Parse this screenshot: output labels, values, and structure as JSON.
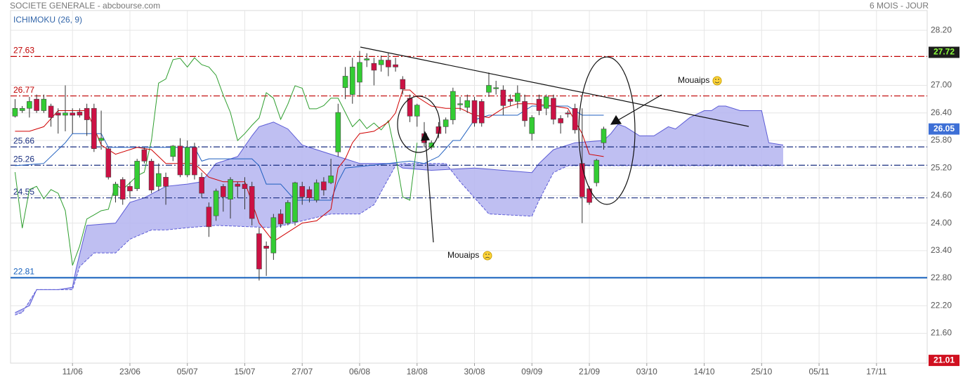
{
  "chart_data": {
    "type": "candlestick",
    "title": "SOCIETE GENERALE - abcbourse.com",
    "period": "6 MOIS - JOUR",
    "indicator": "ICHIMOKU (26, 9)",
    "xlim": [
      -0.63,
      127.06
    ],
    "ylim": [
      20.95,
      28.63
    ],
    "grid": true,
    "xticks": [
      {
        "value": 8,
        "label": "11/06"
      },
      {
        "value": 16,
        "label": "23/06"
      },
      {
        "value": 24,
        "label": "05/07"
      },
      {
        "value": 32,
        "label": "15/07"
      },
      {
        "value": 40,
        "label": "27/07"
      },
      {
        "value": 48,
        "label": "06/08"
      },
      {
        "value": 56,
        "label": "18/08"
      },
      {
        "value": 64,
        "label": "30/08"
      },
      {
        "value": 72,
        "label": "09/09"
      },
      {
        "value": 80,
        "label": "21/09"
      },
      {
        "value": 88,
        "label": "03/10"
      },
      {
        "value": 96,
        "label": "14/10"
      },
      {
        "value": 104,
        "label": "25/10"
      },
      {
        "value": 112,
        "label": "05/11"
      },
      {
        "value": 120,
        "label": "17/11"
      }
    ],
    "yticks": [
      {
        "value": 21.6,
        "label": "21.60"
      },
      {
        "value": 22.2,
        "label": "22.20"
      },
      {
        "value": 22.8,
        "label": "22.80"
      },
      {
        "value": 23.4,
        "label": "23.40"
      },
      {
        "value": 24.0,
        "label": "24.00"
      },
      {
        "value": 24.6,
        "label": "24.60"
      },
      {
        "value": 25.2,
        "label": "25.20"
      },
      {
        "value": 25.8,
        "label": "25.80"
      },
      {
        "value": 26.4,
        "label": "26.40"
      },
      {
        "value": 27.0,
        "label": "27.00"
      },
      {
        "value": 28.2,
        "label": "28.20"
      }
    ],
    "candles": {
      "up_color": "#33cc33",
      "down_color": "#cc1144",
      "x": [
        0,
        1,
        2,
        3,
        4,
        5,
        6,
        7,
        8,
        9,
        10,
        11,
        12,
        13,
        14,
        15,
        16,
        17,
        18,
        19,
        20,
        21,
        22,
        23,
        24,
        25,
        26,
        27,
        28,
        29,
        30,
        31,
        32,
        33,
        34,
        35,
        36,
        37,
        38,
        39,
        40,
        41,
        42,
        43,
        44,
        45,
        46,
        47,
        48,
        49,
        50,
        51,
        52,
        53,
        54,
        55,
        56,
        57,
        58,
        59,
        60,
        61,
        62,
        63,
        64,
        65,
        66,
        67,
        68,
        69,
        70,
        71,
        72,
        73,
        74,
        75,
        76,
        77,
        78,
        79,
        80,
        81,
        82
      ],
      "open": [
        26.33,
        26.45,
        26.5,
        26.7,
        26.45,
        26.55,
        26.4,
        26.35,
        26.4,
        26.42,
        26.5,
        26.5,
        25.8,
        25.62,
        24.6,
        24.95,
        24.8,
        24.75,
        25.6,
        25.35,
        24.8,
        25.0,
        25.45,
        25.68,
        25.05,
        25.65,
        25.0,
        24.35,
        24.16,
        24.8,
        24.52,
        24.85,
        24.85,
        24.8,
        23.77,
        23.5,
        23.35,
        24.2,
        24.0,
        24.03,
        24.8,
        24.73,
        24.5,
        24.9,
        24.88,
        25.55,
        26.95,
        26.8,
        27.07,
        27.55,
        27.48,
        27.45,
        27.55,
        27.45,
        27.13,
        26.72,
        26.33,
        25.95,
        25.65,
        26.1,
        26.1,
        26.25,
        26.6,
        26.52,
        26.67,
        26.65,
        26.85,
        26.95,
        26.9,
        26.7,
        26.65,
        26.65,
        25.95,
        26.7,
        26.5,
        26.72,
        26.28,
        26.4,
        26.5,
        25.3,
        24.75,
        24.88,
        25.75
      ],
      "high": [
        26.7,
        26.55,
        26.75,
        26.8,
        26.8,
        26.6,
        26.5,
        27.0,
        26.5,
        26.5,
        26.6,
        26.6,
        26.45,
        25.65,
        24.9,
        25.0,
        24.9,
        25.4,
        25.65,
        25.4,
        25.3,
        25.1,
        25.7,
        25.85,
        25.8,
        25.75,
        25.1,
        24.45,
        24.75,
        24.85,
        25.0,
        24.9,
        25.0,
        24.9,
        23.9,
        23.6,
        24.2,
        24.3,
        24.5,
        24.9,
        24.9,
        24.8,
        24.95,
        25.0,
        25.4,
        26.6,
        27.4,
        27.6,
        27.75,
        27.7,
        27.6,
        27.65,
        27.7,
        27.6,
        27.2,
        26.8,
        26.6,
        26.2,
        25.8,
        26.2,
        26.3,
        26.95,
        26.75,
        26.8,
        26.75,
        26.7,
        27.28,
        27.1,
        27.0,
        26.8,
        27.0,
        26.8,
        26.35,
        26.8,
        26.8,
        26.8,
        26.35,
        26.45,
        26.6,
        26.5,
        24.8,
        25.4,
        26.1
      ],
      "low": [
        26.3,
        26.4,
        26.3,
        26.4,
        26.4,
        26.1,
        25.95,
        26.0,
        25.95,
        26.3,
        25.9,
        25.55,
        25.6,
        24.95,
        24.45,
        24.4,
        24.55,
        24.7,
        25.3,
        24.65,
        24.7,
        24.4,
        25.35,
        25.0,
        25.0,
        24.95,
        24.55,
        23.7,
        24.05,
        24.25,
        24.1,
        24.55,
        24.3,
        23.95,
        22.75,
        22.85,
        23.2,
        23.9,
        23.95,
        23.95,
        24.4,
        24.45,
        24.45,
        24.6,
        24.85,
        25.45,
        26.7,
        26.6,
        26.75,
        27.4,
        27.0,
        27.3,
        27.2,
        27.3,
        26.8,
        26.2,
        26.1,
        25.65,
        25.6,
        25.85,
        25.95,
        26.15,
        26.45,
        26.4,
        26.1,
        26.1,
        26.75,
        26.8,
        26.35,
        26.55,
        26.5,
        26.1,
        25.8,
        26.35,
        26.35,
        26.15,
        25.95,
        26.3,
        25.95,
        24.0,
        24.4,
        24.8,
        25.6
      ],
      "close": [
        26.5,
        26.5,
        26.65,
        26.45,
        26.7,
        26.3,
        26.35,
        26.4,
        26.35,
        26.35,
        26.25,
        25.62,
        25.85,
        25.0,
        24.85,
        24.52,
        24.7,
        25.35,
        25.35,
        24.72,
        25.08,
        24.8,
        25.68,
        25.05,
        25.65,
        25.05,
        24.65,
        23.92,
        24.7,
        24.57,
        24.95,
        24.8,
        24.75,
        24.1,
        23.0,
        23.45,
        24.12,
        23.98,
        24.45,
        24.88,
        24.57,
        24.55,
        24.88,
        24.72,
        25.03,
        26.41,
        27.2,
        27.4,
        27.5,
        27.58,
        27.33,
        27.55,
        27.4,
        27.4,
        26.92,
        26.33,
        26.57,
        25.75,
        25.75,
        25.95,
        26.25,
        26.87,
        26.6,
        26.67,
        26.18,
        26.18,
        27.0,
        26.95,
        26.56,
        26.65,
        26.83,
        26.23,
        26.3,
        26.45,
        26.75,
        26.26,
        26.18,
        26.38,
        26.03,
        24.57,
        24.45,
        25.37,
        26.05
      ]
    },
    "cloud": {
      "color": "#5b5bd6",
      "fill": "#b4b4f0",
      "upper": {
        "x": [
          0,
          2,
          3,
          6,
          8,
          8.5,
          10,
          14,
          16,
          18,
          21,
          24,
          26,
          28,
          31,
          33,
          34,
          36,
          38,
          40,
          42,
          44,
          46,
          48,
          53,
          54,
          58,
          64,
          72,
          73,
          75,
          78,
          82,
          83,
          84,
          85,
          87,
          89,
          91,
          92,
          94,
          96,
          97,
          98,
          99,
          101,
          104,
          105,
          107
        ],
        "values": [
          22.05,
          22.2,
          22.55,
          22.55,
          22.6,
          23.0,
          23.95,
          24.0,
          24.45,
          24.55,
          24.8,
          24.85,
          24.9,
          25.3,
          25.45,
          25.9,
          26.1,
          26.2,
          26.05,
          25.7,
          25.6,
          25.5,
          25.4,
          25.3,
          25.3,
          25.2,
          25.15,
          25.2,
          25.1,
          25.3,
          25.6,
          25.75,
          25.8,
          25.95,
          26.15,
          26.1,
          25.9,
          25.9,
          26.1,
          26.05,
          26.3,
          26.45,
          26.45,
          26.55,
          26.55,
          26.45,
          26.45,
          25.75,
          25.7
        ]
      },
      "lower": {
        "x": [
          0,
          1,
          2,
          3,
          8,
          9,
          11,
          14,
          16,
          19,
          21,
          24,
          28,
          36,
          40,
          44,
          48,
          50,
          53,
          54,
          57,
          60,
          62,
          66,
          72,
          73,
          75,
          77,
          107
        ],
        "values": [
          22.0,
          22.05,
          22.3,
          22.55,
          22.55,
          23.05,
          23.35,
          23.35,
          23.65,
          23.85,
          23.85,
          23.9,
          23.95,
          23.9,
          24.05,
          24.2,
          24.2,
          24.4,
          25.25,
          25.3,
          25.3,
          25.3,
          24.9,
          24.2,
          24.15,
          24.5,
          25.1,
          25.25,
          25.25
        ]
      }
    },
    "lines": [
      {
        "color": "#2e9e2e",
        "x": [
          0,
          1,
          2,
          3,
          4,
          5,
          6,
          7,
          8,
          9,
          10,
          11,
          12,
          13,
          14,
          15,
          16,
          17,
          18,
          19,
          20,
          21,
          22,
          23,
          24,
          25,
          26,
          27,
          28,
          29,
          30,
          31,
          32,
          33,
          34,
          35,
          36,
          37,
          38,
          39,
          40,
          41,
          42,
          43,
          44,
          45,
          46,
          47,
          48,
          49,
          50,
          51,
          52,
          53,
          54,
          55,
          56
        ],
        "values": [
          25.11,
          23.89,
          24.73,
          24.8,
          24.53,
          24.73,
          24.65,
          24.27,
          23.08,
          23.5,
          24.09,
          24.18,
          24.27,
          24.3,
          24.85,
          24.73,
          24.88,
          25.03,
          25.11,
          25.8,
          27.05,
          27.14,
          27.56,
          27.59,
          27.4,
          27.6,
          27.45,
          27.4,
          27.22,
          26.79,
          26.41,
          25.8,
          25.95,
          26.13,
          26.29,
          26.84,
          26.72,
          26.26,
          26.59,
          26.99,
          26.94,
          26.49,
          26.49,
          26.56,
          26.72,
          26.72,
          26.41,
          26.1,
          26.26,
          26.06,
          26.18,
          26.03,
          26.23,
          25.49,
          24.57,
          24.5,
          25.75
        ]
      },
      {
        "color": "#1f5fbf",
        "x": [
          0,
          4,
          7,
          8,
          12,
          13,
          20,
          25,
          26,
          27,
          33,
          34,
          35,
          37,
          39,
          44,
          45,
          46,
          52,
          55,
          57,
          59,
          61,
          62,
          64,
          66,
          70,
          72,
          77,
          79,
          82
        ],
        "values": [
          25.25,
          25.3,
          25.75,
          25.95,
          25.95,
          25.65,
          25.65,
          25.65,
          25.35,
          25.4,
          25.4,
          25.25,
          24.85,
          24.85,
          24.5,
          24.5,
          24.9,
          25.2,
          25.3,
          25.35,
          25.3,
          25.45,
          25.8,
          25.8,
          26.25,
          26.35,
          26.35,
          26.55,
          26.55,
          26.35,
          26.35
        ]
      },
      {
        "color": "#d00000",
        "x": [
          0,
          2,
          4,
          6,
          10,
          12,
          14,
          17,
          19,
          21,
          23,
          25,
          27,
          29,
          32,
          34,
          36,
          38,
          40,
          42,
          44,
          45,
          46,
          47,
          48,
          50,
          52,
          53,
          54,
          55,
          56,
          58,
          60,
          62,
          64,
          66,
          68,
          70,
          72,
          75,
          77,
          79,
          80,
          82
        ],
        "values": [
          26.0,
          26.0,
          26.1,
          26.45,
          26.45,
          25.7,
          25.5,
          25.65,
          25.6,
          25.3,
          25.3,
          25.3,
          25.0,
          24.9,
          24.9,
          24.0,
          23.6,
          23.8,
          24.0,
          24.05,
          24.3,
          25.2,
          25.4,
          25.75,
          25.95,
          26.0,
          26.2,
          26.4,
          26.9,
          26.9,
          26.75,
          26.55,
          26.5,
          26.5,
          26.35,
          26.3,
          26.5,
          26.6,
          26.6,
          26.55,
          26.5,
          25.95,
          25.5,
          25.45
        ]
      }
    ],
    "levels": [
      {
        "value": 27.63,
        "color": "#c00000",
        "style": "dashdot"
      },
      {
        "value": 26.77,
        "color": "#c00000",
        "style": "dashdot"
      },
      {
        "value": 25.66,
        "color": "#1a2f80",
        "style": "dashdot"
      },
      {
        "value": 25.26,
        "color": "#1a2f80",
        "style": "dashdot"
      },
      {
        "value": 24.55,
        "color": "#1a2f80",
        "style": "dashdot"
      },
      {
        "value": 22.81,
        "color": "#1560bd",
        "style": "solid"
      }
    ],
    "markers": [
      {
        "value": 27.72,
        "background": "#1c1c1c",
        "color": "#8cff3c"
      },
      {
        "value": 26.05,
        "background": "#3d6fd6",
        "color": "#ffffff"
      },
      {
        "value": 21.01,
        "background": "#d01020",
        "color": "#ffffff"
      }
    ],
    "annotations": [
      "Mouaips",
      "Mouaips"
    ]
  }
}
